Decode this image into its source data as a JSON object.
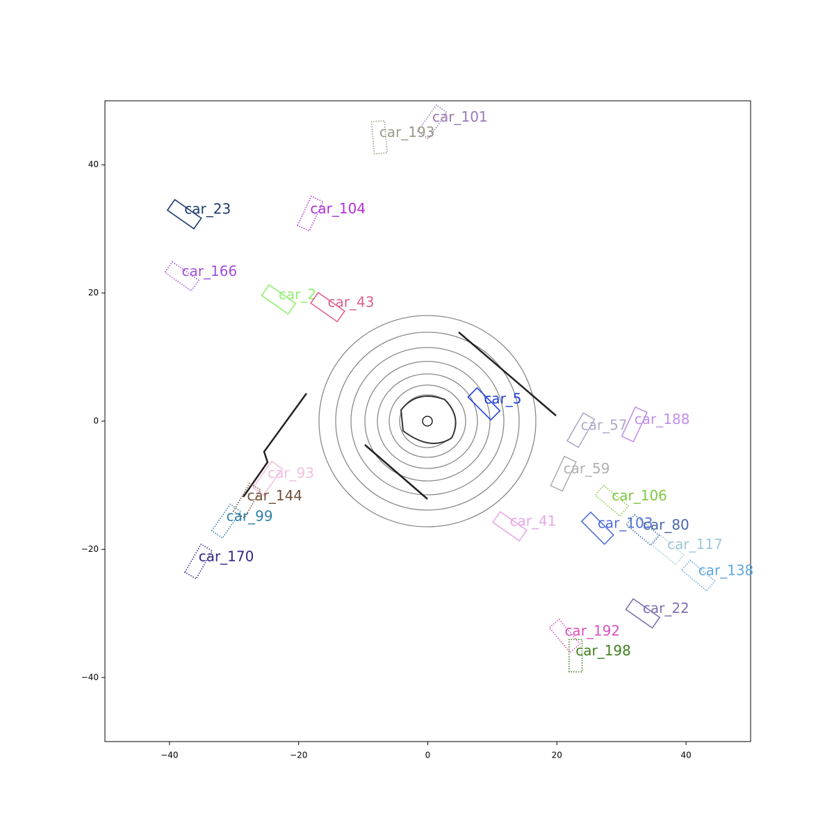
{
  "chart_data": {
    "type": "box-annotations",
    "xlim": [
      -50,
      50
    ],
    "ylim": [
      -50,
      50
    ],
    "xticks": [
      {
        "value": -40,
        "label": "−40"
      },
      {
        "value": -20,
        "label": "−20"
      },
      0,
      20,
      40
    ],
    "yticks": [
      {
        "value": -40,
        "label": "−40"
      },
      {
        "value": -20,
        "label": "−20"
      },
      0,
      20,
      40
    ],
    "boxes": [
      {
        "label": "car_101",
        "x": 0.7,
        "y": 46.7,
        "angle": 55,
        "style": "dotted",
        "color": "#9a78b0"
      },
      {
        "label": "car_193",
        "x": -7.5,
        "y": 44.3,
        "angle": 95,
        "style": "dotted",
        "color": "#9a9a88"
      },
      {
        "label": "car_23",
        "x": -37.7,
        "y": 32.3,
        "angle": -35,
        "style": "solid",
        "color": "#1a3a70"
      },
      {
        "label": "car_104",
        "x": -18.2,
        "y": 32.4,
        "angle": 65,
        "style": "dotted",
        "color": "#b030d8"
      },
      {
        "label": "car_166",
        "x": -38.1,
        "y": 22.6,
        "angle": -35,
        "style": "dotted",
        "color": "#a050d8"
      },
      {
        "label": "car_2",
        "x": -23.1,
        "y": 19.0,
        "angle": -35,
        "style": "solid",
        "color": "#90f070"
      },
      {
        "label": "car_43",
        "x": -15.5,
        "y": 17.8,
        "angle": -35,
        "style": "solid",
        "color": "#e06090"
      },
      {
        "label": "car_5",
        "x": 8.7,
        "y": 2.7,
        "angle": -45,
        "style": "solid",
        "color": "#2040d8"
      },
      {
        "label": "car_57",
        "x": 23.7,
        "y": -1.4,
        "angle": 60,
        "style": "solid",
        "color": "#b0a8c8"
      },
      {
        "label": "car_188",
        "x": 32.0,
        "y": -0.5,
        "angle": 65,
        "style": "solid",
        "color": "#c090e8"
      },
      {
        "label": "car_59",
        "x": 21.0,
        "y": -8.2,
        "angle": 65,
        "style": "solid",
        "color": "#b0b0b0"
      },
      {
        "label": "car_93",
        "x": -24.8,
        "y": -8.9,
        "angle": 55,
        "style": "solid",
        "color": "#f0c0e0"
      },
      {
        "label": "car_144",
        "x": -28.0,
        "y": -12.4,
        "angle": 60,
        "style": "dotted",
        "color": "#705038"
      },
      {
        "label": "car_99",
        "x": -31.2,
        "y": -15.6,
        "angle": 55,
        "style": "dotted",
        "color": "#3080a8"
      },
      {
        "label": "car_170",
        "x": -35.5,
        "y": -21.9,
        "angle": 60,
        "style": "dotted",
        "color": "#302888"
      },
      {
        "label": "car_41",
        "x": 12.7,
        "y": -16.4,
        "angle": -35,
        "style": "solid",
        "color": "#e8a8e8"
      },
      {
        "label": "car_106",
        "x": 28.5,
        "y": -12.4,
        "angle": -40,
        "style": "dotted",
        "color": "#80c840"
      },
      {
        "label": "car_103",
        "x": 26.3,
        "y": -16.7,
        "angle": -45,
        "style": "solid",
        "color": "#5070d8"
      },
      {
        "label": "car_80",
        "x": 33.3,
        "y": -17.0,
        "angle": -40,
        "style": "dotted",
        "color": "#4868a8"
      },
      {
        "label": "car_117",
        "x": 37.1,
        "y": -20.0,
        "angle": -40,
        "style": "dotted",
        "color": "#a0c8d8"
      },
      {
        "label": "car_138",
        "x": 41.9,
        "y": -24.1,
        "angle": -40,
        "style": "dotted",
        "color": "#60a8e0"
      },
      {
        "label": "car_22",
        "x": 33.3,
        "y": -30.0,
        "angle": -35,
        "style": "solid",
        "color": "#8070b0"
      },
      {
        "label": "car_192",
        "x": 21.2,
        "y": -33.5,
        "angle": -50,
        "style": "dotted",
        "color": "#d850c0"
      },
      {
        "label": "car_198",
        "x": 22.9,
        "y": -36.6,
        "angle": 90,
        "style": "dotted",
        "color": "#408020"
      }
    ]
  }
}
